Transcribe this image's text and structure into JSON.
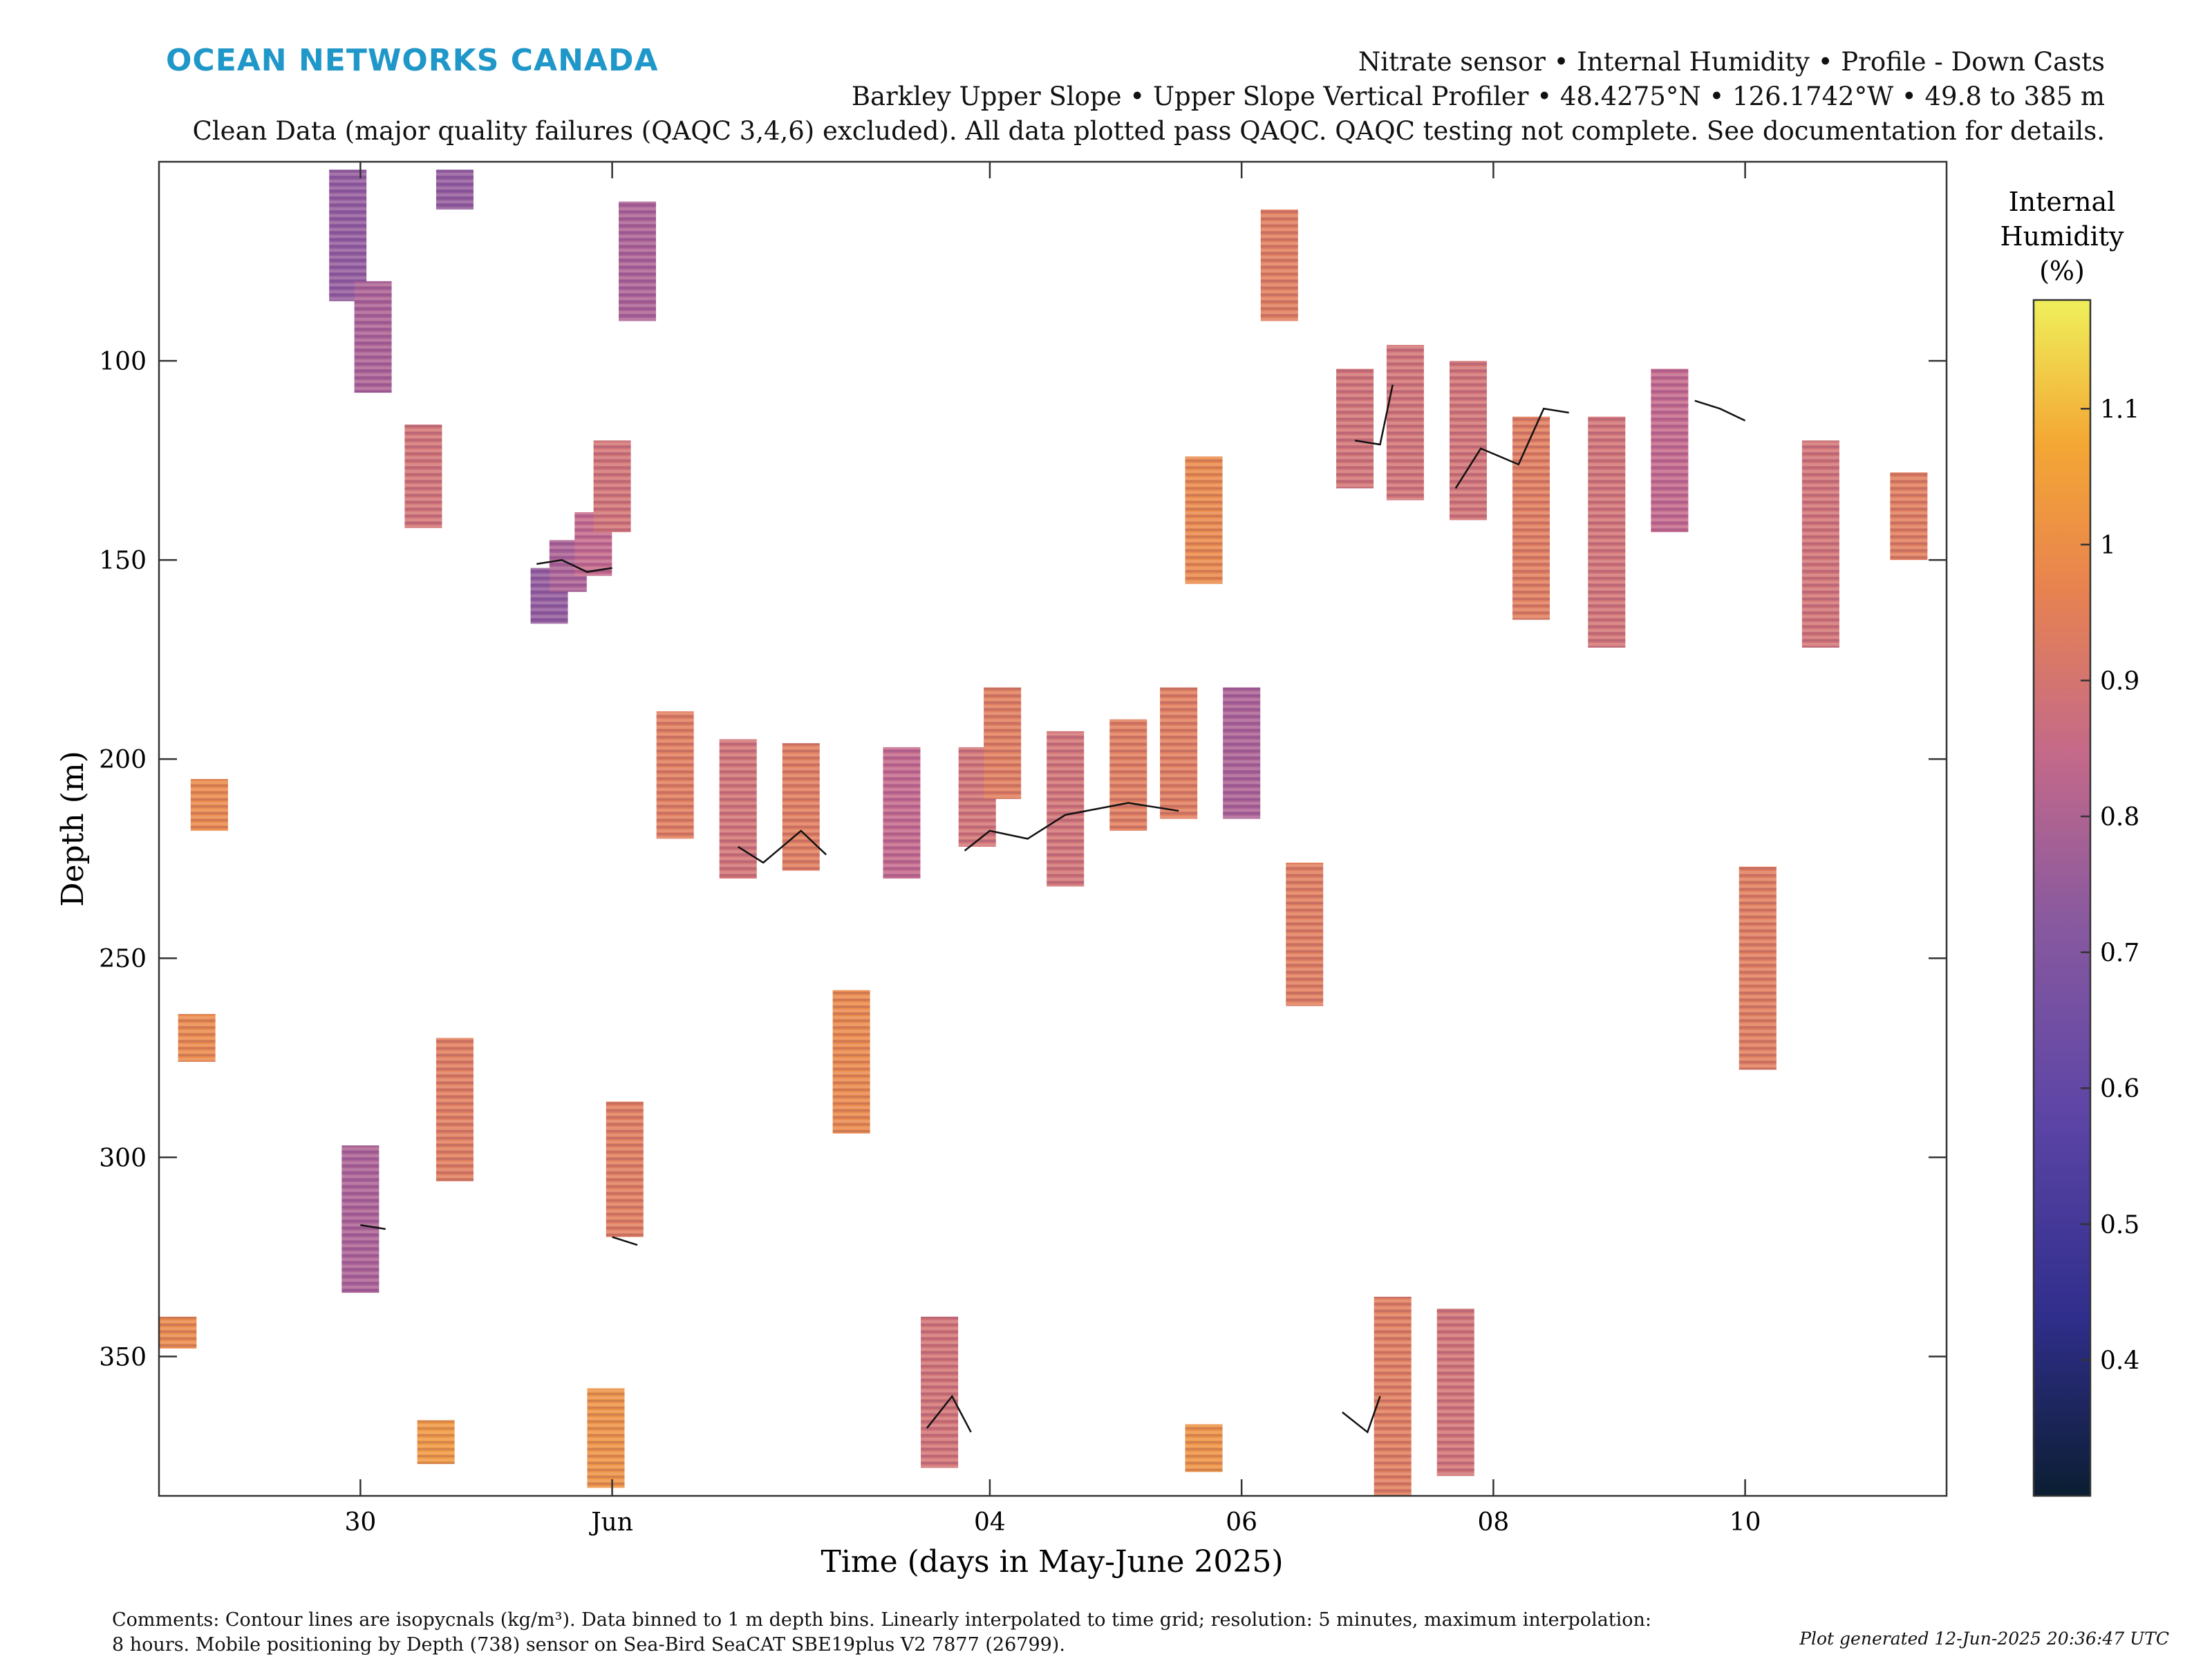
{
  "header": {
    "logo": "OCEAN NETWORKS CANADA",
    "line1": "Nitrate sensor • Internal Humidity • Profile - Down Casts",
    "line2": "Barkley Upper Slope • Upper Slope Vertical Profiler • 48.4275°N • 126.1742°W • 49.8 to 385 m",
    "line3": "Clean Data (major quality failures (QAQC 3,4,6) excluded). All data plotted pass QAQC. QAQC testing not complete. See documentation for details."
  },
  "footer": {
    "comment1": "Comments: Contour lines are isopycnals (kg/m³). Data binned to 1 m depth bins. Linearly interpolated to time grid; resolution: 5 minutes, maximum interpolation:",
    "comment2": "8 hours. Mobile positioning by Depth (738) sensor on Sea-Bird SeaCAT SBE19plus V2 7877 (26799).",
    "generated": "Plot generated 12-Jun-2025 20:36:47 UTC"
  },
  "chart_data": {
    "type": "heatmap",
    "title": "Internal Humidity",
    "xlabel": "Time (days in May-June 2025)",
    "ylabel": "Depth (m)",
    "x_ticks": [
      "30",
      "Jun",
      "04",
      "06",
      "08",
      "10"
    ],
    "x_tick_days": [
      0,
      2,
      5,
      7,
      9,
      11
    ],
    "x_range_days": [
      -1.6,
      12.6
    ],
    "y_ticks": [
      100,
      150,
      200,
      250,
      300,
      350
    ],
    "ylim": [
      385,
      50
    ],
    "y_reversed": true,
    "colorbar": {
      "label": [
        "Internal",
        "Humidity",
        "(%)"
      ],
      "ticks": [
        0.4,
        0.5,
        0.6,
        0.7,
        0.8,
        0.9,
        1,
        1.1
      ],
      "range": [
        0.3,
        1.18
      ],
      "colormap": [
        "#0b1e32",
        "#302e8c",
        "#5d45a6",
        "#88599f",
        "#c4698a",
        "#e8834f",
        "#f4a734",
        "#eff05b"
      ]
    },
    "grid": false,
    "patches": [
      {
        "day": -1.45,
        "depth_top": 340,
        "depth_bottom": 348,
        "humidity": 0.95
      },
      {
        "day": -1.3,
        "depth_top": 264,
        "depth_bottom": 276,
        "humidity": 0.95
      },
      {
        "day": -1.2,
        "depth_top": 205,
        "depth_bottom": 218,
        "humidity": 0.95
      },
      {
        "day": -0.1,
        "depth_top": 52,
        "depth_bottom": 85,
        "humidity": 0.7
      },
      {
        "day": 0.1,
        "depth_top": 80,
        "depth_bottom": 108,
        "humidity": 0.75
      },
      {
        "day": 0.0,
        "depth_top": 297,
        "depth_bottom": 334,
        "humidity": 0.75
      },
      {
        "day": 0.5,
        "depth_top": 116,
        "depth_bottom": 142,
        "humidity": 0.85
      },
      {
        "day": 0.6,
        "depth_top": 366,
        "depth_bottom": 377,
        "humidity": 1.0
      },
      {
        "day": 0.75,
        "depth_top": 270,
        "depth_bottom": 306,
        "humidity": 0.9
      },
      {
        "day": 0.75,
        "depth_top": 52,
        "depth_bottom": 62,
        "humidity": 0.7
      },
      {
        "day": 1.5,
        "depth_top": 152,
        "depth_bottom": 166,
        "humidity": 0.7
      },
      {
        "day": 1.65,
        "depth_top": 145,
        "depth_bottom": 158,
        "humidity": 0.75
      },
      {
        "day": 1.85,
        "depth_top": 138,
        "depth_bottom": 154,
        "humidity": 0.8
      },
      {
        "day": 2.0,
        "depth_top": 120,
        "depth_bottom": 143,
        "humidity": 0.85
      },
      {
        "day": 1.95,
        "depth_top": 358,
        "depth_bottom": 383,
        "humidity": 0.98
      },
      {
        "day": 2.1,
        "depth_top": 286,
        "depth_bottom": 320,
        "humidity": 0.9
      },
      {
        "day": 2.2,
        "depth_top": 60,
        "depth_bottom": 90,
        "humidity": 0.75
      },
      {
        "day": 2.5,
        "depth_top": 188,
        "depth_bottom": 220,
        "humidity": 0.9
      },
      {
        "day": 3.0,
        "depth_top": 195,
        "depth_bottom": 230,
        "humidity": 0.85
      },
      {
        "day": 3.5,
        "depth_top": 196,
        "depth_bottom": 228,
        "humidity": 0.9
      },
      {
        "day": 3.9,
        "depth_top": 258,
        "depth_bottom": 294,
        "humidity": 0.95
      },
      {
        "day": 4.3,
        "depth_top": 197,
        "depth_bottom": 230,
        "humidity": 0.8
      },
      {
        "day": 4.6,
        "depth_top": 340,
        "depth_bottom": 378,
        "humidity": 0.85
      },
      {
        "day": 4.9,
        "depth_top": 197,
        "depth_bottom": 222,
        "humidity": 0.85
      },
      {
        "day": 5.1,
        "depth_top": 182,
        "depth_bottom": 210,
        "humidity": 0.9
      },
      {
        "day": 5.6,
        "depth_top": 193,
        "depth_bottom": 232,
        "humidity": 0.85
      },
      {
        "day": 6.1,
        "depth_top": 190,
        "depth_bottom": 218,
        "humidity": 0.9
      },
      {
        "day": 6.5,
        "depth_top": 182,
        "depth_bottom": 215,
        "humidity": 0.9
      },
      {
        "day": 6.7,
        "depth_top": 124,
        "depth_bottom": 156,
        "humidity": 0.95
      },
      {
        "day": 6.7,
        "depth_top": 367,
        "depth_bottom": 379,
        "humidity": 0.98
      },
      {
        "day": 7.0,
        "depth_top": 182,
        "depth_bottom": 215,
        "humidity": 0.75
      },
      {
        "day": 7.3,
        "depth_top": 62,
        "depth_bottom": 90,
        "humidity": 0.9
      },
      {
        "day": 7.5,
        "depth_top": 226,
        "depth_bottom": 262,
        "humidity": 0.9
      },
      {
        "day": 7.9,
        "depth_top": 102,
        "depth_bottom": 132,
        "humidity": 0.85
      },
      {
        "day": 8.3,
        "depth_top": 96,
        "depth_bottom": 135,
        "humidity": 0.85
      },
      {
        "day": 8.8,
        "depth_top": 100,
        "depth_bottom": 140,
        "humidity": 0.85
      },
      {
        "day": 8.2,
        "depth_top": 335,
        "depth_bottom": 385,
        "humidity": 0.9
      },
      {
        "day": 8.7,
        "depth_top": 338,
        "depth_bottom": 380,
        "humidity": 0.85
      },
      {
        "day": 9.3,
        "depth_top": 114,
        "depth_bottom": 165,
        "humidity": 0.9
      },
      {
        "day": 9.9,
        "depth_top": 114,
        "depth_bottom": 172,
        "humidity": 0.85
      },
      {
        "day": 10.4,
        "depth_top": 102,
        "depth_bottom": 143,
        "humidity": 0.8
      },
      {
        "day": 11.1,
        "depth_top": 227,
        "depth_bottom": 278,
        "humidity": 0.9
      },
      {
        "day": 11.6,
        "depth_top": 120,
        "depth_bottom": 172,
        "humidity": 0.85
      },
      {
        "day": 12.3,
        "depth_top": 128,
        "depth_bottom": 150,
        "humidity": 0.9
      }
    ]
  }
}
